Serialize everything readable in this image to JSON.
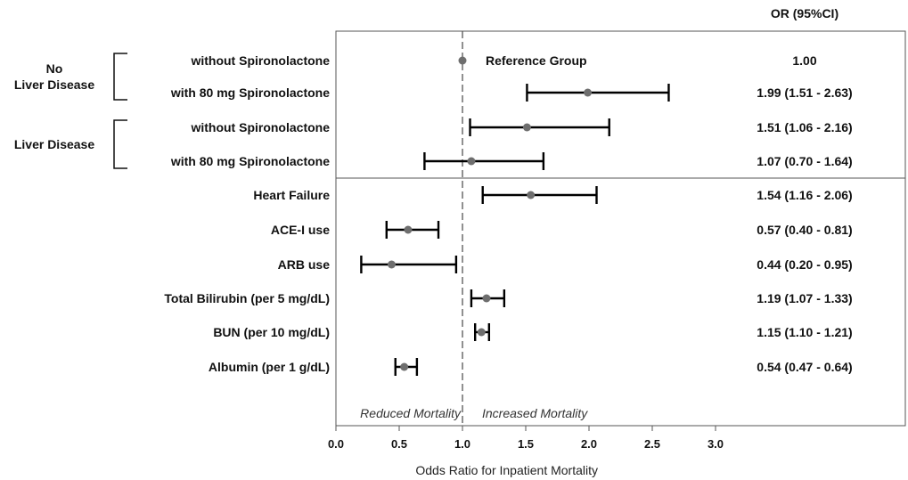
{
  "chart_data": {
    "type": "forest",
    "xlabel": "Odds Ratio for Inpatient Mortality",
    "xlim": [
      0.0,
      3.0
    ],
    "xticks": [
      "0.0",
      "0.5",
      "1.0",
      "1.5",
      "2.0",
      "2.5",
      "3.0"
    ],
    "reference_line": 1.0,
    "ci_column_header": "OR (95%CI)",
    "reference_label": "Reduced Mortality",
    "increased_label": "Increased Mortality",
    "groups": [
      {
        "label_line1": "No",
        "label_line2": "Liver Disease",
        "rows": [
          0,
          1
        ]
      },
      {
        "label_line1": "Liver Disease",
        "label_line2": "",
        "rows": [
          2,
          3
        ]
      }
    ],
    "rows": [
      {
        "label": "without Spironolactone",
        "or": 1.0,
        "lo": null,
        "hi": null,
        "ci_text": "1.00",
        "note": "Reference Group"
      },
      {
        "label": "with 80 mg Spironolactone",
        "or": 1.99,
        "lo": 1.51,
        "hi": 2.63,
        "ci_text": "1.99 (1.51 - 2.63)",
        "note": ""
      },
      {
        "label": "without Spironolactone",
        "or": 1.51,
        "lo": 1.06,
        "hi": 2.16,
        "ci_text": "1.51 (1.06 - 2.16)",
        "note": ""
      },
      {
        "label": "with 80 mg Spironolactone",
        "or": 1.07,
        "lo": 0.7,
        "hi": 1.64,
        "ci_text": "1.07 (0.70 - 1.64)",
        "note": ""
      },
      {
        "label": "Heart Failure",
        "or": 1.54,
        "lo": 1.16,
        "hi": 2.06,
        "ci_text": "1.54 (1.16 - 2.06)",
        "note": ""
      },
      {
        "label": "ACE-I use",
        "or": 0.57,
        "lo": 0.4,
        "hi": 0.81,
        "ci_text": "0.57 (0.40 - 0.81)",
        "note": ""
      },
      {
        "label": "ARB use",
        "or": 0.44,
        "lo": 0.2,
        "hi": 0.95,
        "ci_text": "0.44 (0.20 - 0.95)",
        "note": ""
      },
      {
        "label": "Total Bilirubin (per 5 mg/dL)",
        "or": 1.19,
        "lo": 1.07,
        "hi": 1.33,
        "ci_text": "1.19 (1.07 - 1.33)",
        "note": ""
      },
      {
        "label": "BUN (per 10 mg/dL)",
        "or": 1.15,
        "lo": 1.1,
        "hi": 1.21,
        "ci_text": "1.15 (1.10 - 1.21)",
        "note": ""
      },
      {
        "label": "Albumin (per 1 g/dL)",
        "or": 0.54,
        "lo": 0.47,
        "hi": 0.64,
        "ci_text": "0.54 (0.47 - 0.64)",
        "note": ""
      }
    ],
    "colors": {
      "point": "#6e6e6e",
      "ci": "#000000",
      "frame": "#555555",
      "refline": "#555555"
    }
  }
}
